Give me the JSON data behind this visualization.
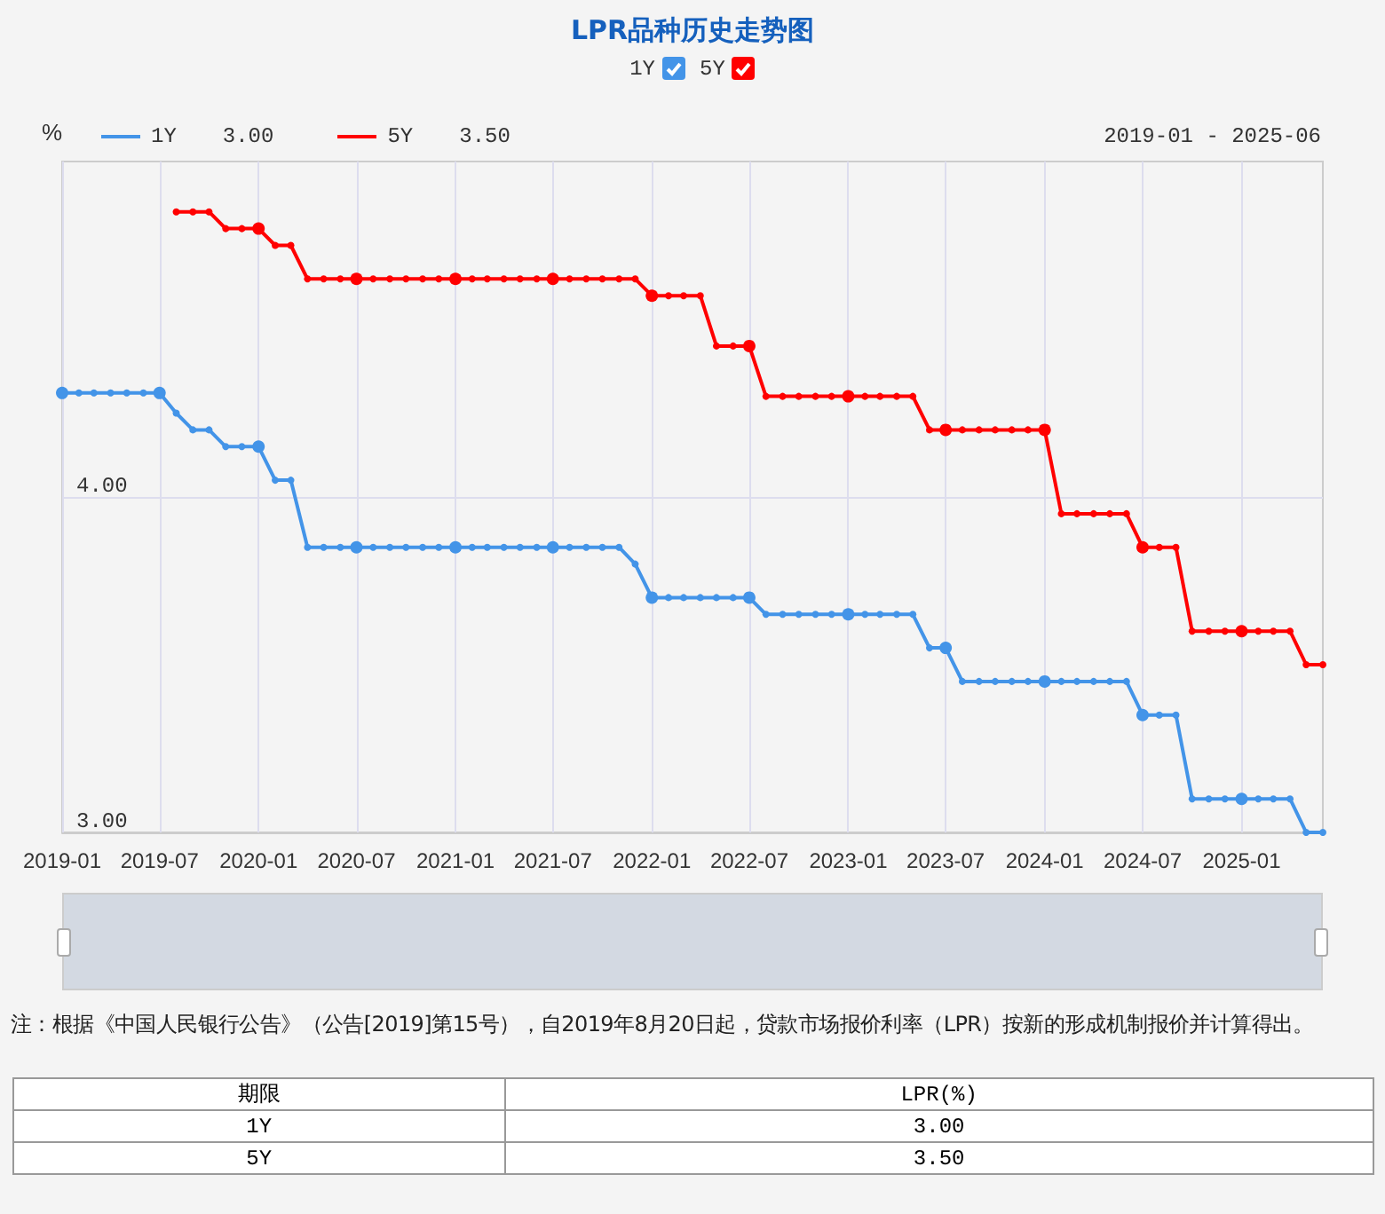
{
  "chart_data": {
    "type": "line",
    "title": "LPR品种历史走势图",
    "ylabel": "%",
    "x": [
      "2019-01",
      "2019-02",
      "2019-03",
      "2019-04",
      "2019-05",
      "2019-06",
      "2019-07",
      "2019-08",
      "2019-09",
      "2019-10",
      "2019-11",
      "2019-12",
      "2020-01",
      "2020-02",
      "2020-03",
      "2020-04",
      "2020-05",
      "2020-06",
      "2020-07",
      "2020-08",
      "2020-09",
      "2020-10",
      "2020-11",
      "2020-12",
      "2021-01",
      "2021-02",
      "2021-03",
      "2021-04",
      "2021-05",
      "2021-06",
      "2021-07",
      "2021-08",
      "2021-09",
      "2021-10",
      "2021-11",
      "2021-12",
      "2022-01",
      "2022-02",
      "2022-03",
      "2022-04",
      "2022-05",
      "2022-06",
      "2022-07",
      "2022-08",
      "2022-09",
      "2022-10",
      "2022-11",
      "2022-12",
      "2023-01",
      "2023-02",
      "2023-03",
      "2023-04",
      "2023-05",
      "2023-06",
      "2023-07",
      "2023-08",
      "2023-09",
      "2023-10",
      "2023-11",
      "2023-12",
      "2024-01",
      "2024-02",
      "2024-03",
      "2024-04",
      "2024-05",
      "2024-06",
      "2024-07",
      "2024-08",
      "2024-09",
      "2024-10",
      "2024-11",
      "2024-12",
      "2025-01",
      "2025-02",
      "2025-03",
      "2025-04",
      "2025-05",
      "2025-06"
    ],
    "series": [
      {
        "name": "1Y",
        "color": "#4394e8",
        "values": [
          4.31,
          4.31,
          4.31,
          4.31,
          4.31,
          4.31,
          4.31,
          4.25,
          4.2,
          4.2,
          4.15,
          4.15,
          4.15,
          4.05,
          4.05,
          3.85,
          3.85,
          3.85,
          3.85,
          3.85,
          3.85,
          3.85,
          3.85,
          3.85,
          3.85,
          3.85,
          3.85,
          3.85,
          3.85,
          3.85,
          3.85,
          3.85,
          3.85,
          3.85,
          3.85,
          3.8,
          3.7,
          3.7,
          3.7,
          3.7,
          3.7,
          3.7,
          3.7,
          3.65,
          3.65,
          3.65,
          3.65,
          3.65,
          3.65,
          3.65,
          3.65,
          3.65,
          3.65,
          3.55,
          3.55,
          3.45,
          3.45,
          3.45,
          3.45,
          3.45,
          3.45,
          3.45,
          3.45,
          3.45,
          3.45,
          3.45,
          3.35,
          3.35,
          3.35,
          3.1,
          3.1,
          3.1,
          3.1,
          3.1,
          3.1,
          3.1,
          3,
          3
        ]
      },
      {
        "name": "5Y",
        "color": "#ff0000",
        "values": [
          null,
          null,
          null,
          null,
          null,
          null,
          null,
          4.85,
          4.85,
          4.85,
          4.8,
          4.8,
          4.8,
          4.75,
          4.75,
          4.65,
          4.65,
          4.65,
          4.65,
          4.65,
          4.65,
          4.65,
          4.65,
          4.65,
          4.65,
          4.65,
          4.65,
          4.65,
          4.65,
          4.65,
          4.65,
          4.65,
          4.65,
          4.65,
          4.65,
          4.65,
          4.6,
          4.6,
          4.6,
          4.6,
          4.45,
          4.45,
          4.45,
          4.3,
          4.3,
          4.3,
          4.3,
          4.3,
          4.3,
          4.3,
          4.3,
          4.3,
          4.3,
          4.2,
          4.2,
          4.2,
          4.2,
          4.2,
          4.2,
          4.2,
          4.2,
          3.95,
          3.95,
          3.95,
          3.95,
          3.95,
          3.85,
          3.85,
          3.85,
          3.6,
          3.6,
          3.6,
          3.6,
          3.6,
          3.6,
          3.6,
          3.5,
          3.5
        ]
      }
    ],
    "xlim": [
      "2019-01",
      "2025-06"
    ],
    "xticks": [
      "2019-01",
      "2019-07",
      "2020-01",
      "2020-07",
      "2021-01",
      "2021-07",
      "2022-01",
      "2022-07",
      "2023-01",
      "2023-07",
      "2024-01",
      "2024-07",
      "2025-01"
    ],
    "ylim": [
      3,
      5
    ],
    "yticks": [
      {
        "value": 3,
        "label": "3.00"
      },
      {
        "value": 4,
        "label": "4.00"
      }
    ],
    "grid": true,
    "legend": "top left",
    "marker": "circle",
    "line_style": "solid",
    "annotations": [
      "2019-01 - 2025-06",
      "注：根据《中国人民银行公告》（公告[2019]第15号），自2019年8月20日起，贷款市场报价利率（LPR）按新的形成机制报价并计算得出。",
      "期限",
      "LPR(%)",
      "3.00",
      "3.50"
    ]
  }
}
